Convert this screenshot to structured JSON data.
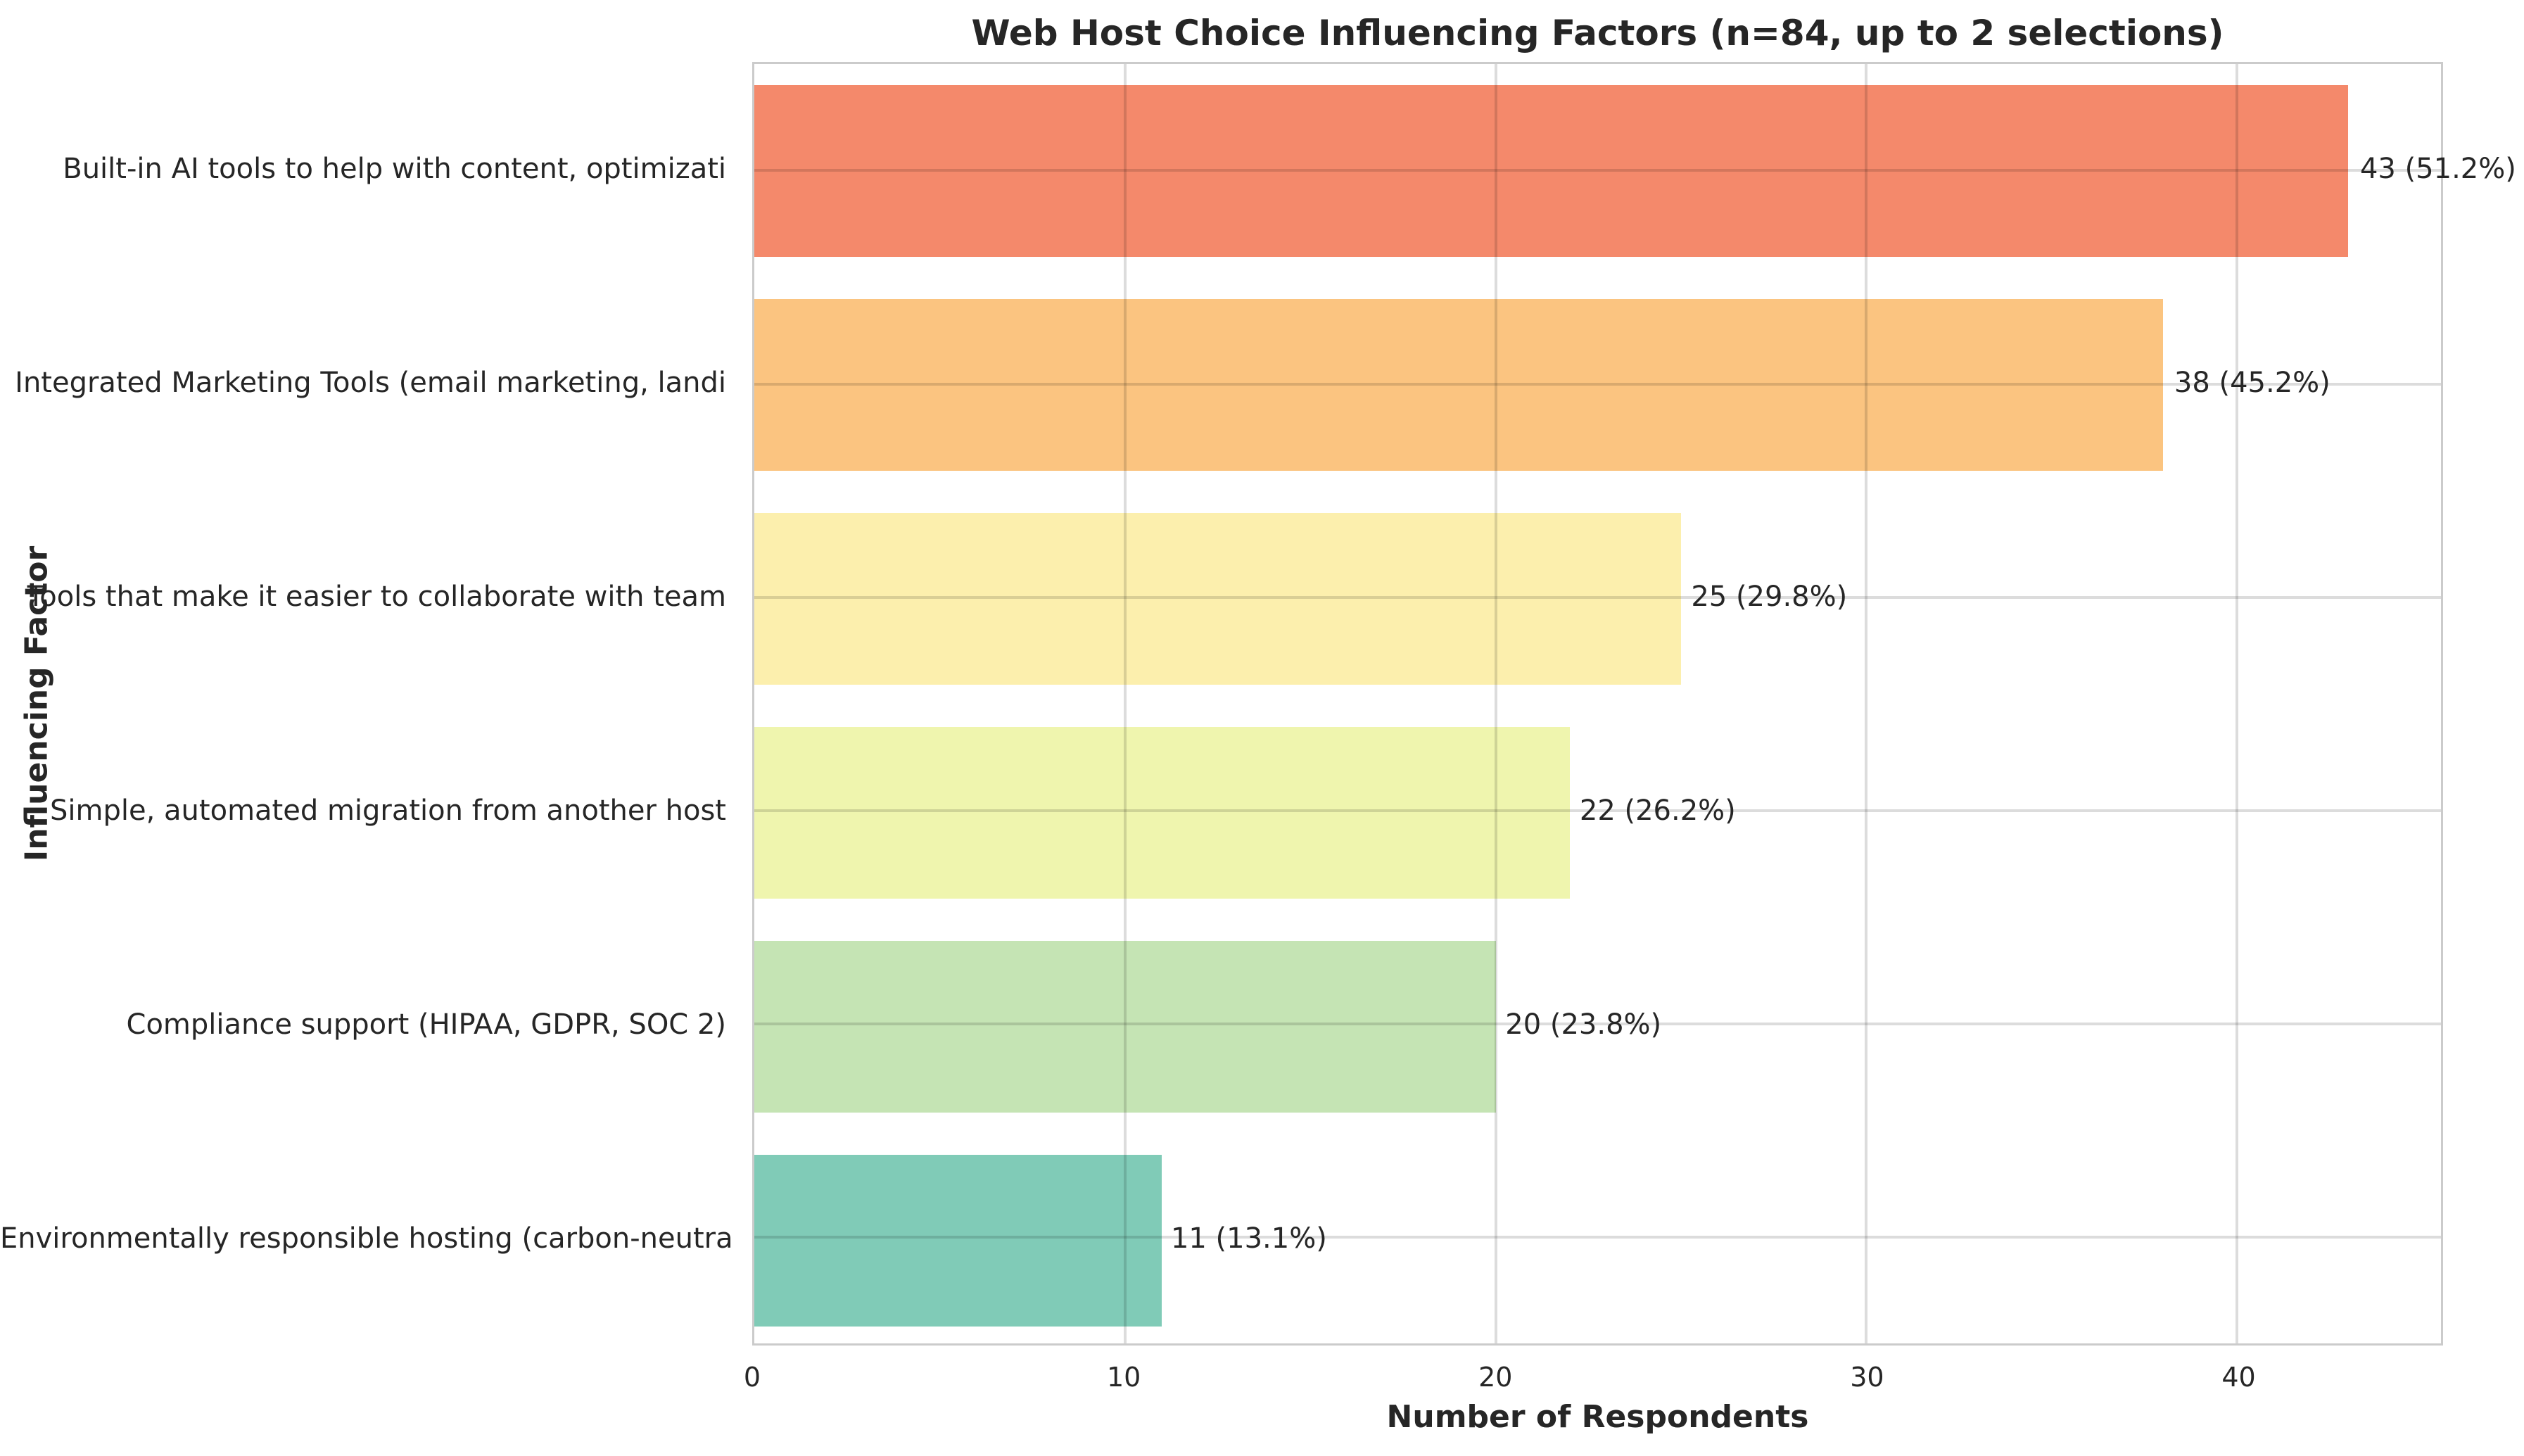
{
  "chart_data": {
    "type": "bar",
    "orientation": "horizontal",
    "title": "Web Host Choice Influencing Factors (n=84, up to 2 selections)",
    "xlabel": "Number of Respondents",
    "ylabel": "Influencing Factor",
    "n_respondents": 84,
    "categories": [
      "Built-in AI tools to help with content, optimizati",
      "Integrated Marketing Tools (email marketing, landi",
      "Tools that make it easier to collaborate with team",
      "Simple, automated migration from another host",
      "Compliance support (HIPAA, GDPR, SOC 2)",
      "Environmentally responsible hosting (carbon-neutra"
    ],
    "values": [
      43,
      38,
      25,
      22,
      20,
      11
    ],
    "value_labels": [
      "43 (51.2%)",
      "38 (45.2%)",
      "25 (29.8%)",
      "22 (26.2%)",
      "20 (23.8%)",
      "11 (13.1%)"
    ],
    "bar_colors": [
      "#F4896B",
      "#FBC480",
      "#FCEFAD",
      "#EFF5AE",
      "#C5E4B4",
      "#80CBB7"
    ],
    "xlim": [
      0,
      45.5
    ],
    "xticks": [
      0,
      10,
      20,
      30,
      40
    ],
    "grid": true,
    "gridline_color": "#dcdcdc",
    "plot_border_color": "#cbcbcb",
    "background_color": "#ffffff",
    "legend": null
  }
}
